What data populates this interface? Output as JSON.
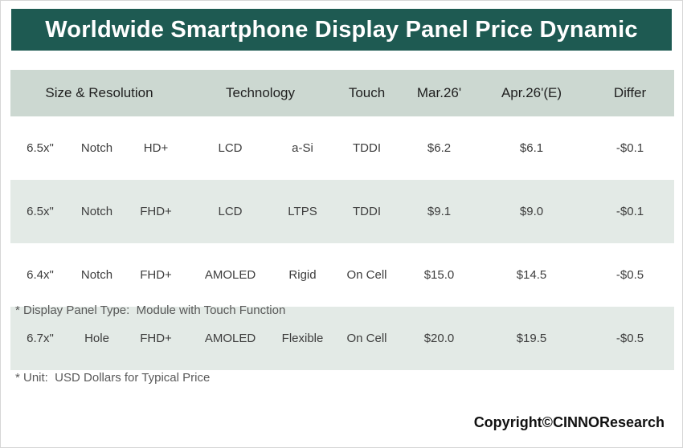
{
  "title": "Worldwide Smartphone Display Panel Price Dynamic",
  "chart_data": {
    "type": "table",
    "title": "Worldwide Smartphone Display Panel Price Dynamic",
    "header": {
      "size_resolution": "Size & Resolution",
      "technology": "Technology",
      "touch": "Touch",
      "mar": "Mar.26'",
      "apr": "Apr.26'(E)",
      "differ": "Differ"
    },
    "rows": [
      [
        "6.5x\"",
        "Notch",
        "HD+",
        "LCD",
        "a-Si",
        "TDDI",
        "$6.2",
        "$6.1",
        "-$0.1"
      ],
      [
        "6.5x\"",
        "Notch",
        "FHD+",
        "LCD",
        "LTPS",
        "TDDI",
        "$9.1",
        "$9.0",
        "-$0.1"
      ],
      [
        "6.4x\"",
        "Notch",
        "FHD+",
        "AMOLED",
        "Rigid",
        "On Cell",
        "$15.0",
        "$14.5",
        "-$0.5"
      ],
      [
        "6.7x\"",
        "Hole",
        "FHD+",
        "AMOLED",
        "Flexible",
        "On Cell",
        "$20.0",
        "$19.5",
        "-$0.5"
      ]
    ]
  },
  "footnotes": {
    "line1": "* Display Panel Type:  Module with Touch Function",
    "line2": "* Unit:  USD Dollars for Typical Price"
  },
  "copyright": "Copyright©CINNOResearch",
  "colors": {
    "title_bg": "#1e5a52",
    "header_bg": "#ccd8d1",
    "row_shaded": "#e3eae6"
  }
}
